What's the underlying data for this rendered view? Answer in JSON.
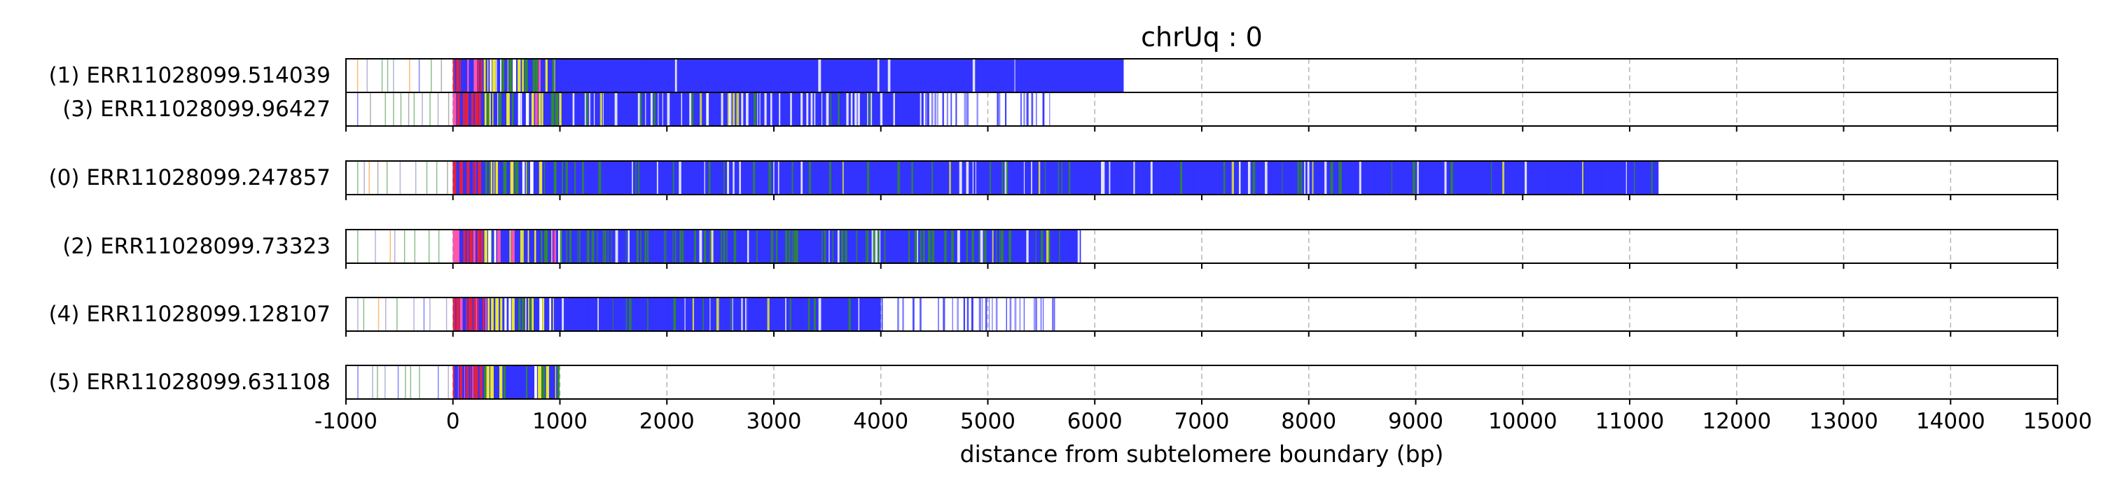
{
  "chart_data": {
    "type": "bar",
    "title": "chrUq : 0",
    "xlabel": "distance from subtelomere boundary (bp)",
    "ylabel": "",
    "xlim": [
      -1000,
      15000
    ],
    "x_ticks": [
      "-1000",
      "0",
      "1000",
      "2000",
      "3000",
      "4000",
      "5000",
      "6000",
      "7000",
      "8000",
      "9000",
      "10000",
      "11000",
      "12000",
      "13000",
      "14000",
      "15000"
    ],
    "grid": "x, dashed",
    "colors": {
      "telomere_repeat": "#3333ff",
      "variant_repeat": "#2e8b2e",
      "yellow": "#e8e830",
      "red": "#e8203a",
      "pink": "#ff55aa",
      "orange": "#ff9a3c",
      "sparse": "#a0a0d0"
    },
    "groups": [
      {
        "reads": [
          {
            "label": "(1) ERR11028099.514039",
            "start": -1000,
            "end": 6270,
            "dense_start": 0,
            "pattern": "dense_blue",
            "seed": 11
          },
          {
            "label": "(3) ERR11028099.96427",
            "start": -1000,
            "end": 5630,
            "dense_start": 0,
            "pattern": "mixed_white",
            "seed": 23
          }
        ]
      },
      {
        "reads": [
          {
            "label": "(0) ERR11028099.247857",
            "start": -1000,
            "end": 11270,
            "dense_start": 0,
            "pattern": "blue_green",
            "seed": 37
          }
        ]
      },
      {
        "reads": [
          {
            "label": "(2) ERR11028099.73323",
            "start": -1000,
            "end": 5870,
            "dense_start": 0,
            "pattern": "green_heavy",
            "seed": 41
          }
        ]
      },
      {
        "reads": [
          {
            "label": "(4) ERR11028099.128107",
            "start": -1000,
            "end": 5720,
            "dense_start": 0,
            "pattern": "fading",
            "seed": 53
          }
        ]
      },
      {
        "reads": [
          {
            "label": "(5) ERR11028099.631108",
            "start": -1000,
            "end": 980,
            "dense_start": 0,
            "pattern": "short",
            "seed": 67
          }
        ]
      }
    ]
  }
}
